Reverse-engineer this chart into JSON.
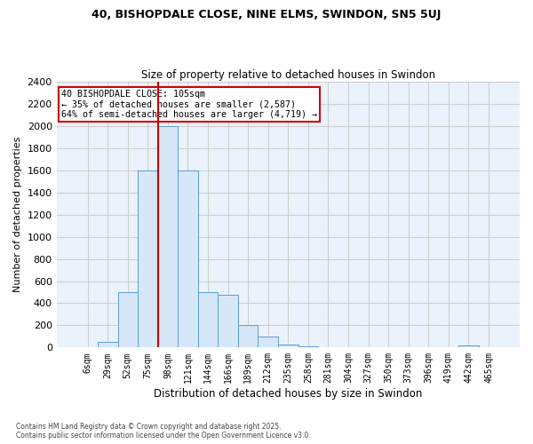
{
  "title1": "40, BISHOPDALE CLOSE, NINE ELMS, SWINDON, SN5 5UJ",
  "title2": "Size of property relative to detached houses in Swindon",
  "xlabel": "Distribution of detached houses by size in Swindon",
  "ylabel": "Number of detached properties",
  "annotation_title": "40 BISHOPDALE CLOSE: 105sqm",
  "annotation_line2": "← 35% of detached houses are smaller (2,587)",
  "annotation_line3": "64% of semi-detached houses are larger (4,719) →",
  "footer1": "Contains HM Land Registry data © Crown copyright and database right 2025.",
  "footer2": "Contains public sector information licensed under the Open Government Licence v3.0.",
  "bar_labels": [
    "6sqm",
    "29sqm",
    "52sqm",
    "75sqm",
    "98sqm",
    "121sqm",
    "144sqm",
    "166sqm",
    "189sqm",
    "212sqm",
    "235sqm",
    "258sqm",
    "281sqm",
    "304sqm",
    "327sqm",
    "350sqm",
    "373sqm",
    "396sqm",
    "419sqm",
    "442sqm",
    "465sqm"
  ],
  "bar_heights": [
    0,
    50,
    500,
    1600,
    2000,
    1600,
    500,
    480,
    200,
    100,
    30,
    10,
    5,
    5,
    2,
    2,
    1,
    0,
    0,
    15,
    0
  ],
  "bar_color": "#d6e8f7",
  "bar_edge_color": "#5b9bd5",
  "red_line_x": 3.5,
  "red_line_color": "#cc0000",
  "annotation_box_color": "#cc0000",
  "plot_bg_color": "#eaf2fb",
  "fig_bg_color": "#ffffff",
  "grid_color": "#cccccc",
  "ylim": [
    0,
    2400
  ],
  "yticks": [
    0,
    200,
    400,
    600,
    800,
    1000,
    1200,
    1400,
    1600,
    1800,
    2000,
    2200,
    2400
  ]
}
